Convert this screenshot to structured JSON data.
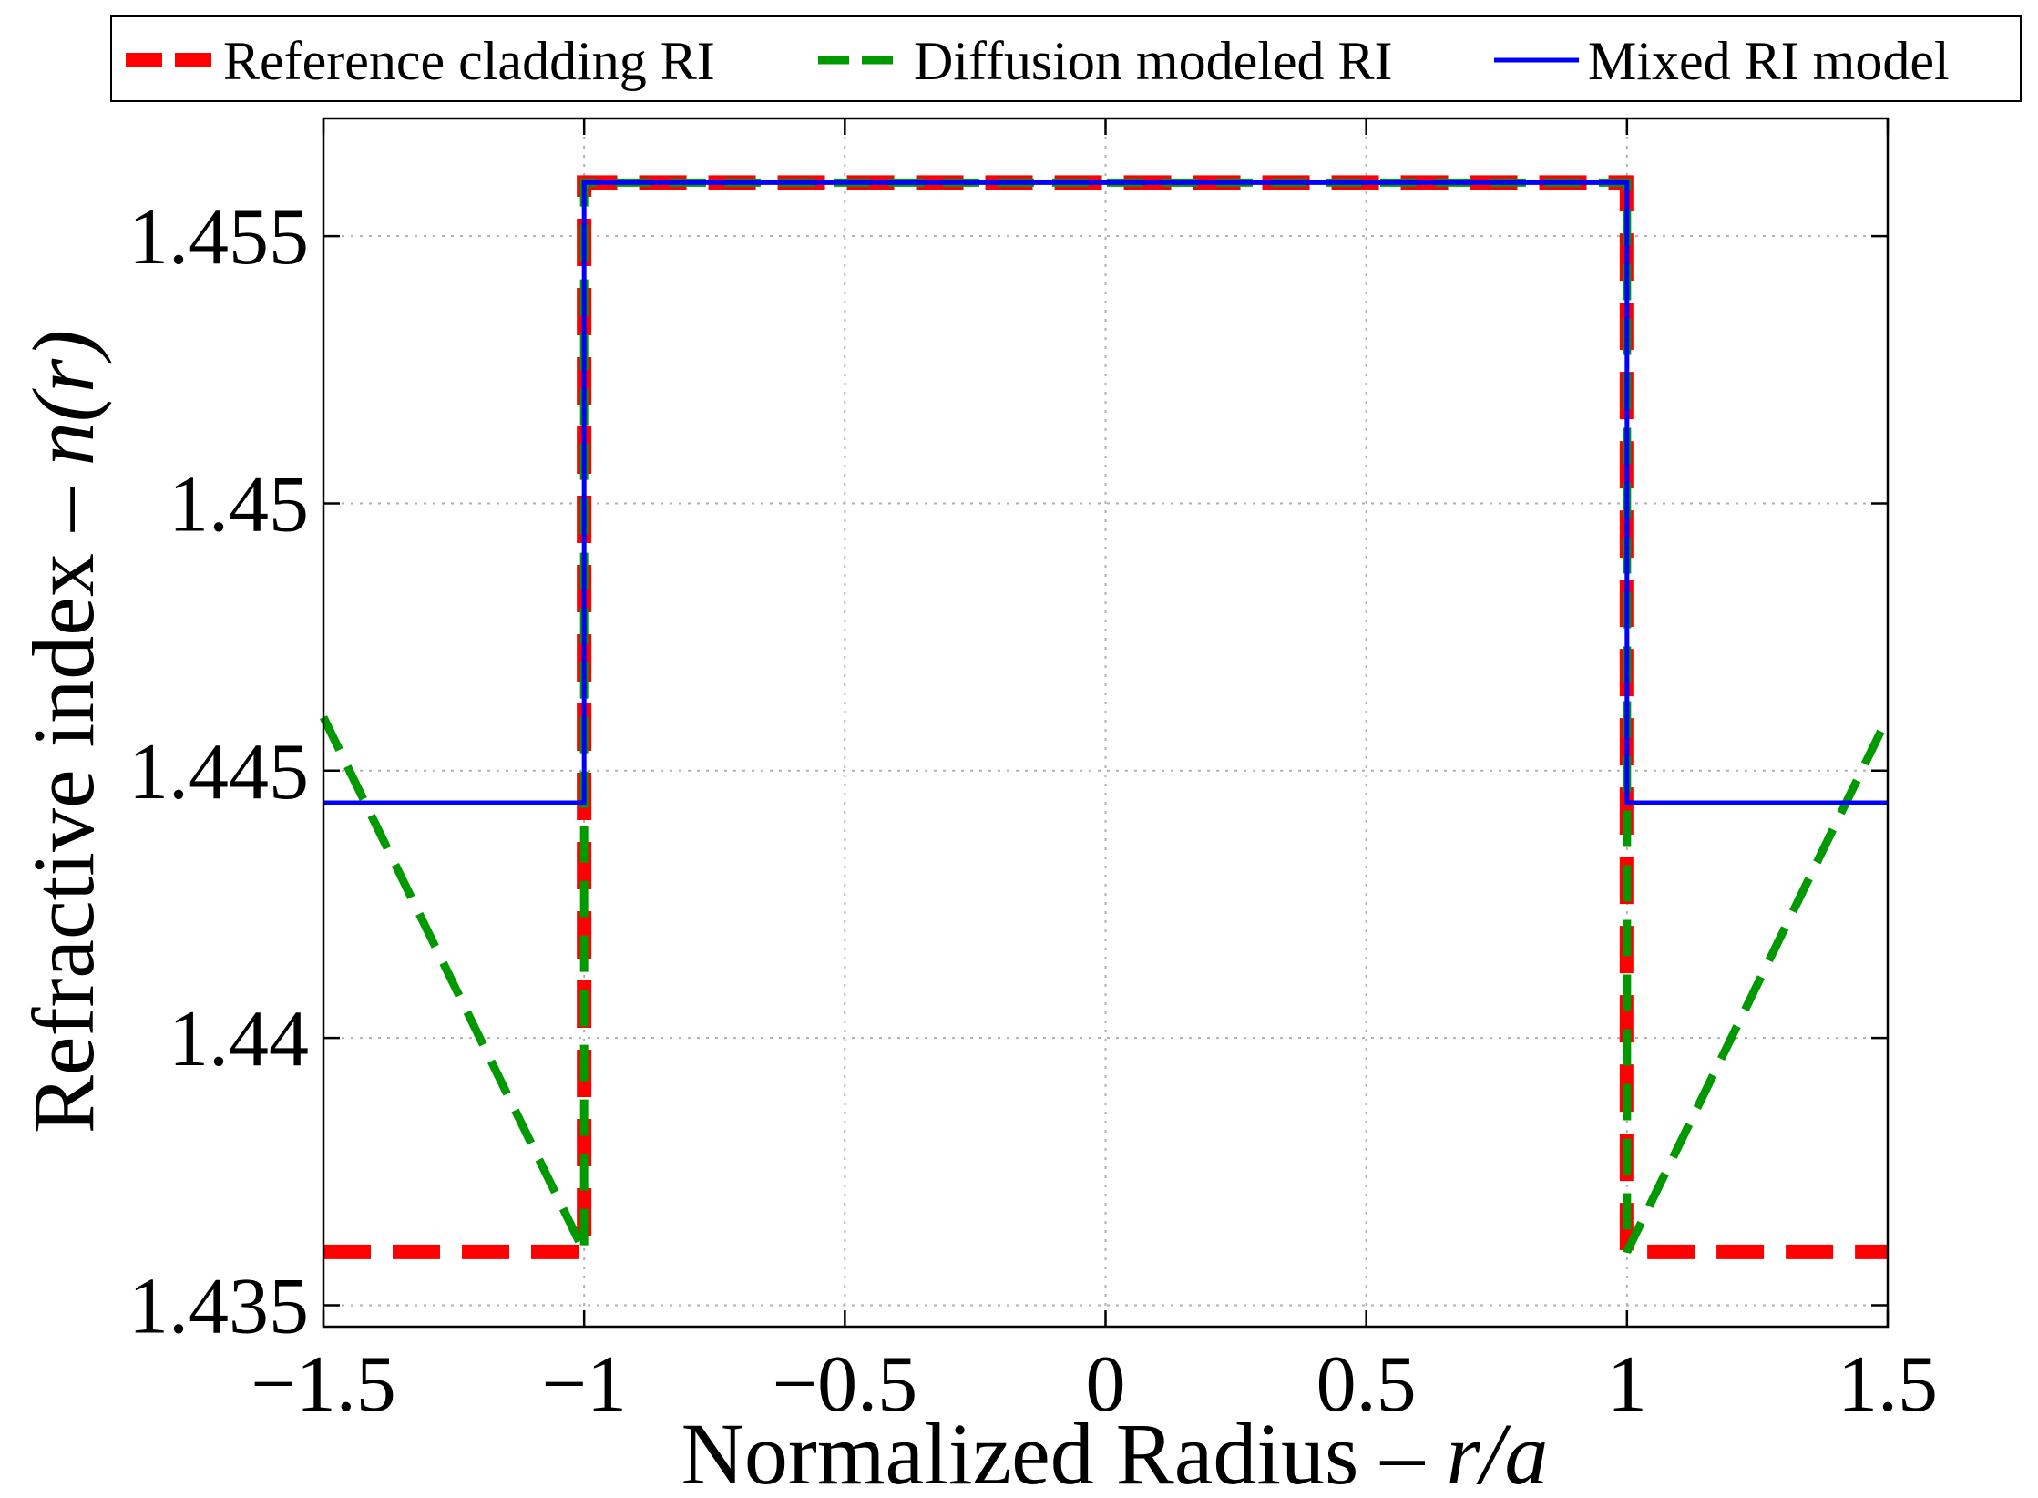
{
  "chart_data": {
    "type": "line",
    "xlabel": {
      "text": "Normalized Radius – ",
      "var": "r/a"
    },
    "ylabel": {
      "text": "Refractive index – ",
      "var": "n(r)"
    },
    "xlim": [
      -1.5,
      1.5
    ],
    "ylim": [
      1.4346,
      1.4572
    ],
    "xticks": [
      -1.5,
      -1,
      -0.5,
      0,
      0.5,
      1,
      1.5
    ],
    "xtick_labels": [
      "−1.5",
      "−1",
      "−0.5",
      "0",
      "0.5",
      "1",
      "1.5"
    ],
    "yticks": [
      1.435,
      1.44,
      1.445,
      1.45,
      1.455
    ],
    "ytick_labels": [
      "1.435",
      "1.44",
      "1.445",
      "1.45",
      "1.455"
    ],
    "grid": true,
    "legend_position": "top-outside",
    "series": [
      {
        "name": "Reference cladding RI",
        "color": "#ff0000",
        "style": "dashed-thick",
        "x": [
          -1.5,
          -1,
          -1,
          1,
          1,
          1.5
        ],
        "y": [
          1.436,
          1.436,
          1.456,
          1.456,
          1.436,
          1.436
        ]
      },
      {
        "name": "Diffusion modeled RI",
        "color": "#009900",
        "style": "dashed",
        "x": [
          -1.5,
          -1,
          -1,
          1,
          1,
          1.5
        ],
        "y": [
          1.446,
          1.436,
          1.456,
          1.456,
          1.436,
          1.446
        ]
      },
      {
        "name": "Mixed RI model",
        "color": "#0000ff",
        "style": "solid",
        "x": [
          -1.5,
          -1,
          -1,
          1,
          1,
          1.5
        ],
        "y": [
          1.4444,
          1.4444,
          1.456,
          1.456,
          1.4444,
          1.4444
        ]
      }
    ]
  }
}
